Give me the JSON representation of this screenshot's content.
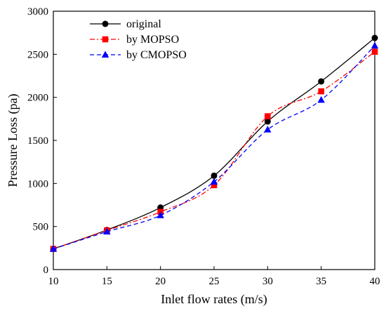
{
  "chart_data": {
    "type": "line",
    "xlabel": "Inlet  flow rates (m/s)",
    "ylabel": "Pressure Loss (pa)",
    "xlim": [
      10,
      40
    ],
    "ylim": [
      0,
      3000
    ],
    "xticks": [
      10,
      15,
      20,
      25,
      30,
      35,
      40
    ],
    "yticks": [
      0,
      500,
      1000,
      1500,
      2000,
      2500,
      3000
    ],
    "grid": false,
    "legend_position": "top-left",
    "x": [
      10,
      15,
      20,
      25,
      30,
      35,
      40
    ],
    "series": [
      {
        "name": "original",
        "color": "#000000",
        "marker": "circle",
        "line_style": "solid",
        "values": [
          240,
          460,
          720,
          1090,
          1720,
          2185,
          2690
        ]
      },
      {
        "name": "by MOPSO",
        "color": "#ff0000",
        "marker": "square",
        "line_style": "dash-dot",
        "values": [
          240,
          455,
          670,
          980,
          1780,
          2070,
          2530
        ]
      },
      {
        "name": "by CMOPSO",
        "color": "#0000ff",
        "marker": "triangle",
        "line_style": "dashed",
        "values": [
          240,
          440,
          630,
          1020,
          1625,
          1970,
          2600
        ]
      }
    ]
  }
}
